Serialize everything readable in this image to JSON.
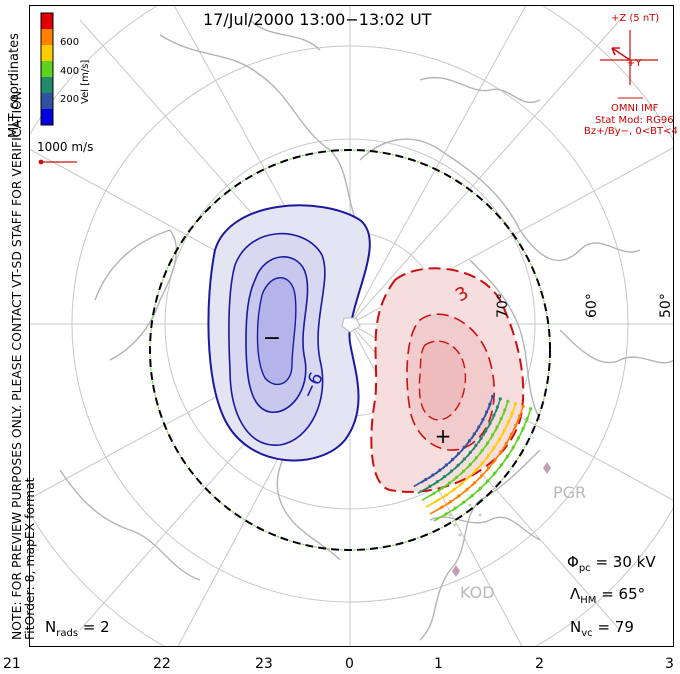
{
  "header": {
    "title": "17/Jul/2000 13:00−13:02 UT"
  },
  "side_note": {
    "line1": "MLT coordinates",
    "line2": "NOTE: FOR PREVIEW PURPOSES ONLY. PLEASE CONTACT VT-SD STAFF FOR VERIFICATION.",
    "line3": "FitOrder: 8, mapEX format"
  },
  "colorbar": {
    "label": "Vel [m/s]",
    "ticks": [
      "600",
      "400",
      "200"
    ],
    "colors": [
      "#e00000",
      "#ff8000",
      "#ffcc00",
      "#60d020",
      "#208a6a",
      "#3050a0",
      "#0000e0"
    ]
  },
  "scale": {
    "label": "1000 m/s"
  },
  "imf": {
    "z_label": "+Z (5 nT)",
    "y_label": "+Y",
    "source": "OMNI IMF",
    "model": "Stat Mod: RG96",
    "condition": "Bz+/By−, 0<BT<4"
  },
  "latitude_labels": [
    "70°",
    "60°",
    "50°"
  ],
  "contour_labels": {
    "negative": "−6",
    "positive": "3"
  },
  "potential_markers": {
    "minimum": "−",
    "maximum": "+"
  },
  "stations": [
    "PGR",
    "KOD"
  ],
  "stats": {
    "phi_pc": {
      "symbol": "Φ",
      "sub": "pc",
      "value": "= 30 kV"
    },
    "lambda_hm": {
      "symbol": "Λ",
      "sub": "HM",
      "value": "= 65°"
    },
    "n_vc": {
      "symbol": "N",
      "sub": "vc",
      "value": "= 79"
    },
    "n_rads": {
      "symbol": "N",
      "sub": "rads",
      "value": "= 2"
    }
  },
  "mlt_axis": [
    "21",
    "22",
    "23",
    "0",
    "1",
    "2",
    "3"
  ],
  "colors": {
    "negative": "#1a1aa0",
    "positive": "#cc1010",
    "grid": "#c8c8c8",
    "land": "#b0b0b0"
  }
}
